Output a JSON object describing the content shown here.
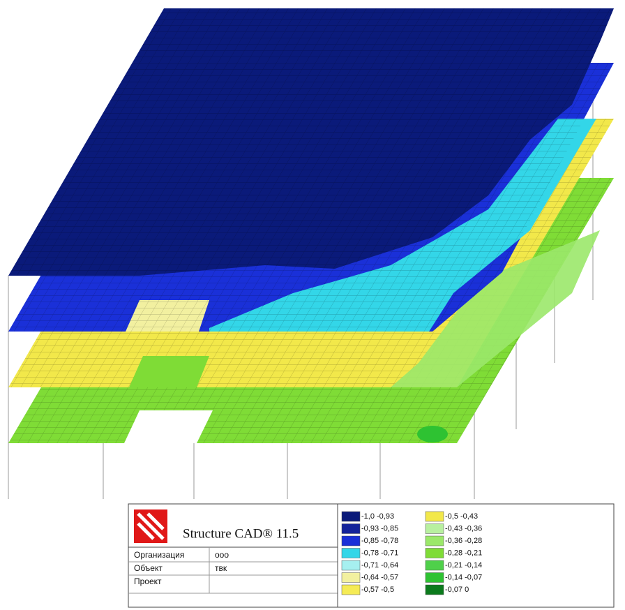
{
  "title_block": {
    "product": "Structure CAD® 11.5",
    "rows": [
      [
        "Организация",
        "ооо"
      ],
      [
        "Объект",
        "твк"
      ],
      [
        "Проект",
        ""
      ]
    ]
  },
  "legend": {
    "items": [
      {
        "label": "-1,0  -0,93",
        "color": "#0a1a7a"
      },
      {
        "label": "-0,93  -0,85",
        "color": "#14239a"
      },
      {
        "label": "-0,85  -0,78",
        "color": "#1a30d8"
      },
      {
        "label": "-0,78  -0,71",
        "color": "#33d6e8"
      },
      {
        "label": "-0,71  -0,64",
        "color": "#a6f0f0"
      },
      {
        "label": "-0,64  -0,57",
        "color": "#f2f0a0"
      },
      {
        "label": "-0,57  -0,5",
        "color": "#f5eb55"
      },
      {
        "label": "-0,5  -0,43",
        "color": "#f2e84a"
      },
      {
        "label": "-0,43  -0,36",
        "color": "#b8f0a0"
      },
      {
        "label": "-0,36  -0,28",
        "color": "#9be86a"
      },
      {
        "label": "-0,28  -0,21",
        "color": "#7fdc36"
      },
      {
        "label": "-0,21  -0,14",
        "color": "#4fd04a"
      },
      {
        "label": "-0,14  -0,07",
        "color": "#2ec232"
      },
      {
        "label": "-0,07  0",
        "color": "#0b7a1c"
      }
    ]
  }
}
